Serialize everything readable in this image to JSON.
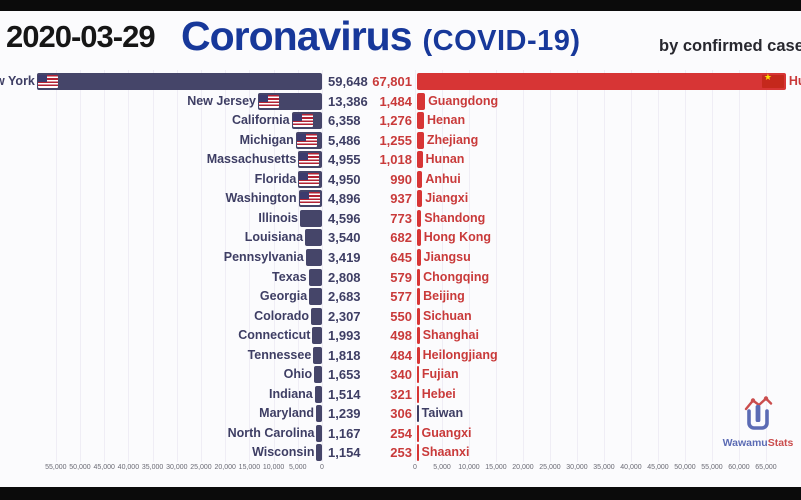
{
  "header": {
    "date": "2020-03-29",
    "title": "Coronavirus",
    "subtitle": "(COVID-19)",
    "tagline": "by confirmed case"
  },
  "watermark": {
    "name_primary": "Wawamu",
    "name_secondary": "Stats"
  },
  "colors": {
    "title_blue": "#17389a",
    "us_bar": "#454569",
    "us_text": "#3e3e64",
    "china_bar": "#d73535",
    "china_text": "#c93a3a",
    "taiwan_label": "#3e3e64",
    "background": "#fbfbfd",
    "letterbox": "#0b0b0b",
    "gridline": "#efedf5"
  },
  "chart_data": {
    "type": "bar",
    "orientation": "horizontal-mirrored",
    "title": "Coronavirus (COVID-19)",
    "subtitle": "by confirmed case",
    "date": "2020-03-29",
    "legend_position": "none",
    "grid": true,
    "left": {
      "region": "United States",
      "flag": "us",
      "bar_color": "#454569",
      "text_color": "#3e3e64",
      "axis_direction": "values increase right-to-left, baseline at center-left",
      "axis_ticks": [
        "55,000",
        "50,000",
        "45,000",
        "40,000",
        "35,000",
        "30,000",
        "25,000",
        "20,000",
        "15,000",
        "10,000",
        "5,000",
        "0"
      ],
      "series": [
        {
          "label": "New York",
          "value": 59648,
          "display": "59,648"
        },
        {
          "label": "New Jersey",
          "value": 13386,
          "display": "13,386"
        },
        {
          "label": "California",
          "value": 6358,
          "display": "6,358"
        },
        {
          "label": "Michigan",
          "value": 5486,
          "display": "5,486"
        },
        {
          "label": "Massachusetts",
          "value": 4955,
          "display": "4,955"
        },
        {
          "label": "Florida",
          "value": 4950,
          "display": "4,950"
        },
        {
          "label": "Washington",
          "value": 4896,
          "display": "4,896"
        },
        {
          "label": "Illinois",
          "value": 4596,
          "display": "4,596"
        },
        {
          "label": "Louisiana",
          "value": 3540,
          "display": "3,540"
        },
        {
          "label": "Pennsylvania",
          "value": 3419,
          "display": "3,419"
        },
        {
          "label": "Texas",
          "value": 2808,
          "display": "2,808"
        },
        {
          "label": "Georgia",
          "value": 2683,
          "display": "2,683"
        },
        {
          "label": "Colorado",
          "value": 2307,
          "display": "2,307"
        },
        {
          "label": "Connecticut",
          "value": 1993,
          "display": "1,993"
        },
        {
          "label": "Tennessee",
          "value": 1818,
          "display": "1,818"
        },
        {
          "label": "Ohio",
          "value": 1653,
          "display": "1,653"
        },
        {
          "label": "Indiana",
          "value": 1514,
          "display": "1,514"
        },
        {
          "label": "Maryland",
          "value": 1239,
          "display": "1,239"
        },
        {
          "label": "North Carolina",
          "value": 1167,
          "display": "1,167"
        },
        {
          "label": "Wisconsin",
          "value": 1154,
          "display": "1,154"
        }
      ]
    },
    "right": {
      "region": "China",
      "flag": "china",
      "bar_color": "#d73535",
      "text_color": "#c93a3a",
      "axis_direction": "values increase left-to-right, baseline at center-right",
      "axis_ticks": [
        "0",
        "5,000",
        "10,000",
        "15,000",
        "20,000",
        "25,000",
        "30,000",
        "35,000",
        "40,000",
        "45,000",
        "50,000",
        "55,000",
        "60,000",
        "65,000"
      ],
      "series": [
        {
          "label": "Hubei",
          "value": 67801,
          "display": "67,801"
        },
        {
          "label": "Guangdong",
          "value": 1484,
          "display": "1,484"
        },
        {
          "label": "Henan",
          "value": 1276,
          "display": "1,276"
        },
        {
          "label": "Zhejiang",
          "value": 1255,
          "display": "1,255"
        },
        {
          "label": "Hunan",
          "value": 1018,
          "display": "1,018"
        },
        {
          "label": "Anhui",
          "value": 990,
          "display": "990"
        },
        {
          "label": "Jiangxi",
          "value": 937,
          "display": "937"
        },
        {
          "label": "Shandong",
          "value": 773,
          "display": "773"
        },
        {
          "label": "Hong Kong",
          "value": 682,
          "display": "682"
        },
        {
          "label": "Jiangsu",
          "value": 645,
          "display": "645"
        },
        {
          "label": "Chongqing",
          "value": 579,
          "display": "579"
        },
        {
          "label": "Beijing",
          "value": 577,
          "display": "577"
        },
        {
          "label": "Sichuan",
          "value": 550,
          "display": "550"
        },
        {
          "label": "Shanghai",
          "value": 498,
          "display": "498"
        },
        {
          "label": "Heilongjiang",
          "value": 484,
          "display": "484"
        },
        {
          "label": "Fujian",
          "value": 340,
          "display": "340"
        },
        {
          "label": "Hebei",
          "value": 321,
          "display": "321"
        },
        {
          "label": "Taiwan",
          "value": 306,
          "display": "306",
          "label_color": "#3e3e64"
        },
        {
          "label": "Guangxi",
          "value": 254,
          "display": "254"
        },
        {
          "label": "Shaanxi",
          "value": 253,
          "display": "253"
        }
      ]
    }
  }
}
